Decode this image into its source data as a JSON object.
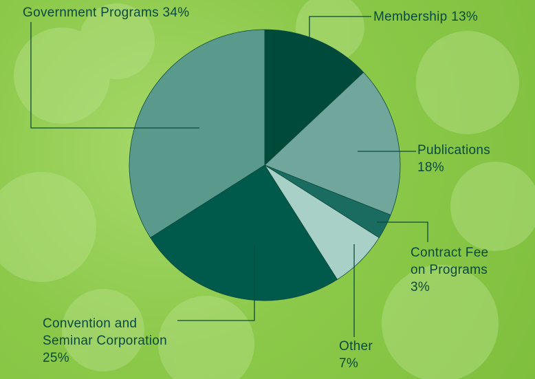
{
  "chart_data": {
    "type": "pie",
    "categories": [
      "Membership",
      "Publications",
      "Contract Fee on Programs",
      "Other",
      "Convention and Seminar Corporation",
      "Government Programs"
    ],
    "values": [
      13,
      18,
      3,
      7,
      25,
      34
    ],
    "value_labels": [
      "13%",
      "18%",
      "3%",
      "7%",
      "25%",
      "34%"
    ],
    "colors": [
      "#004a3b",
      "#70a69b",
      "#1a6b60",
      "#a9d0c7",
      "#005a4b",
      "#5a9a8d"
    ]
  }
}
